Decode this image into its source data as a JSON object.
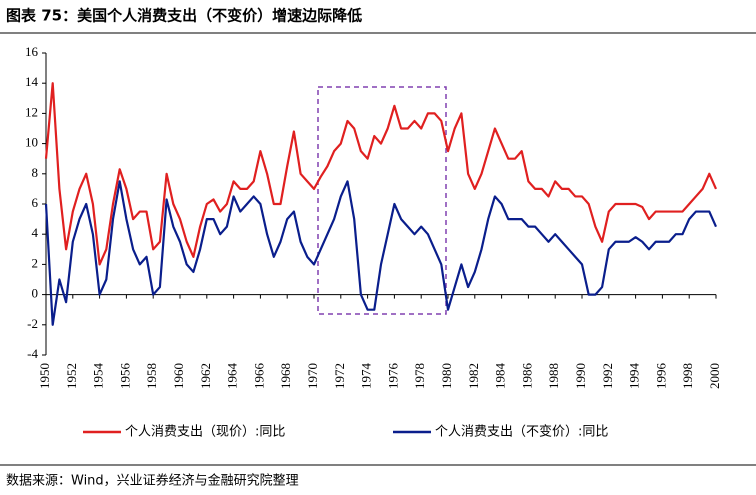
{
  "chart_data": {
    "type": "line",
    "title": "图表 75：美国个人消费支出（不变价）增速边际降低",
    "source": "数据来源：Wind，兴业证券经济与金融研究院整理",
    "x": [
      1950,
      1950.5,
      1951,
      1951.5,
      1952,
      1952.5,
      1953,
      1953.5,
      1954,
      1954.5,
      1955,
      1955.5,
      1956,
      1956.5,
      1957,
      1957.5,
      1958,
      1958.5,
      1959,
      1959.5,
      1960,
      1960.5,
      1961,
      1961.5,
      1962,
      1962.5,
      1963,
      1963.5,
      1964,
      1964.5,
      1965,
      1965.5,
      1966,
      1966.5,
      1967,
      1967.5,
      1968,
      1968.5,
      1969,
      1969.5,
      1970,
      1970.5,
      1971,
      1971.5,
      1972,
      1972.5,
      1973,
      1973.5,
      1974,
      1974.5,
      1975,
      1975.5,
      1976,
      1976.5,
      1977,
      1977.5,
      1978,
      1978.5,
      1979,
      1979.5,
      1980,
      1980.5,
      1981,
      1981.5,
      1982,
      1982.5,
      1983,
      1983.5,
      1984,
      1984.5,
      1985,
      1985.5,
      1986,
      1986.5,
      1987,
      1987.5,
      1988,
      1988.5,
      1989,
      1989.5,
      1990,
      1990.5,
      1991,
      1991.5,
      1992,
      1992.5,
      1993,
      1993.5,
      1994,
      1994.5,
      1995,
      1995.5,
      1996,
      1996.5,
      1997,
      1997.5,
      1998,
      1998.5,
      1999,
      1999.5,
      2000
    ],
    "series": [
      {
        "name": "个人消费支出（现价）:同比",
        "color": "#e02020",
        "values": [
          9,
          14,
          7,
          3,
          5.5,
          7,
          8,
          6,
          2,
          3,
          6,
          8.3,
          7,
          5,
          5.5,
          5.5,
          3,
          3.5,
          8,
          6,
          5,
          3.5,
          2.5,
          4.5,
          6,
          6.3,
          5.5,
          6,
          7.5,
          7,
          7,
          7.5,
          9.5,
          8,
          6,
          6,
          8.5,
          10.8,
          8,
          7.5,
          7,
          7.8,
          8.5,
          9.5,
          10,
          11.5,
          11,
          9.5,
          9,
          10.5,
          10,
          11,
          12.5,
          11,
          11,
          11.5,
          11,
          12,
          12,
          11.5,
          9.5,
          11,
          12,
          8,
          7,
          8,
          9.5,
          11,
          10,
          9,
          9,
          9.5,
          7.5,
          7,
          7,
          6.5,
          7.5,
          7,
          7,
          6.5,
          6.5,
          6,
          4.5,
          3.5,
          5.5,
          6,
          6,
          6,
          6,
          5.8,
          5,
          5.5,
          5.5,
          5.5,
          5.5,
          5.5,
          6,
          6.5,
          7,
          8,
          7
        ]
      },
      {
        "name": "个人消费支出（不变价）:同比",
        "color": "#0a1e8c",
        "values": [
          6,
          -2,
          1,
          -0.5,
          3.5,
          5,
          6,
          4,
          0,
          1,
          5,
          7.5,
          5,
          3,
          2,
          2.5,
          0,
          0.5,
          6.3,
          4.5,
          3.5,
          2,
          1.5,
          3,
          5,
          5,
          4,
          4.5,
          6.5,
          5.5,
          6,
          6.5,
          6,
          4,
          2.5,
          3.5,
          5,
          5.5,
          3.5,
          2.5,
          2,
          3,
          4,
          5,
          6.5,
          7.5,
          5,
          0,
          -1,
          -1,
          2,
          4,
          6,
          5,
          4.5,
          4,
          4.5,
          4,
          3,
          2,
          -1,
          0.5,
          2,
          0.5,
          1.5,
          3,
          5,
          6.5,
          6,
          5,
          5,
          5,
          4.5,
          4.5,
          4,
          3.5,
          4,
          3.5,
          3,
          2.5,
          2,
          0,
          0,
          0.5,
          3,
          3.5,
          3.5,
          3.5,
          3.8,
          3.5,
          3,
          3.5,
          3.5,
          3.5,
          4,
          4,
          5,
          5.5,
          5.5,
          5.5,
          4.5
        ]
      }
    ],
    "xlim": [
      1950,
      2000
    ],
    "xticks": [
      1950,
      1952,
      1954,
      1956,
      1958,
      1960,
      1962,
      1964,
      1966,
      1968,
      1970,
      1972,
      1974,
      1976,
      1978,
      1980,
      1982,
      1984,
      1986,
      1988,
      1990,
      1992,
      1994,
      1996,
      1998,
      2000
    ],
    "ylim": [
      -4,
      16
    ],
    "yticks": [
      -4,
      -2,
      0,
      2,
      4,
      6,
      8,
      10,
      12,
      14,
      16
    ]
  }
}
